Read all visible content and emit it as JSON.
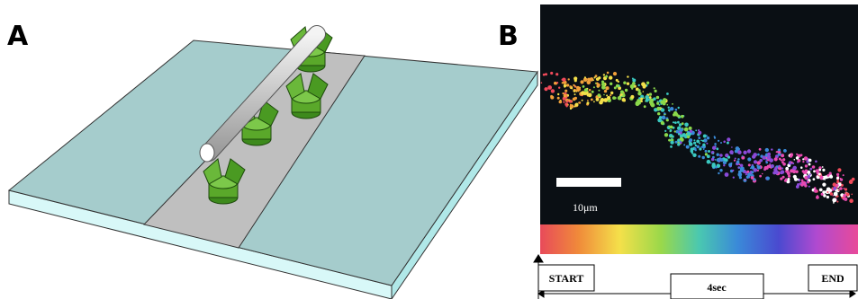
{
  "panels": [
    {
      "label": "A"
    },
    {
      "label": "B",
      "scale_bar": "10μm",
      "timeline": {
        "start": "START",
        "duration": "4sec",
        "end": "END"
      }
    }
  ]
}
